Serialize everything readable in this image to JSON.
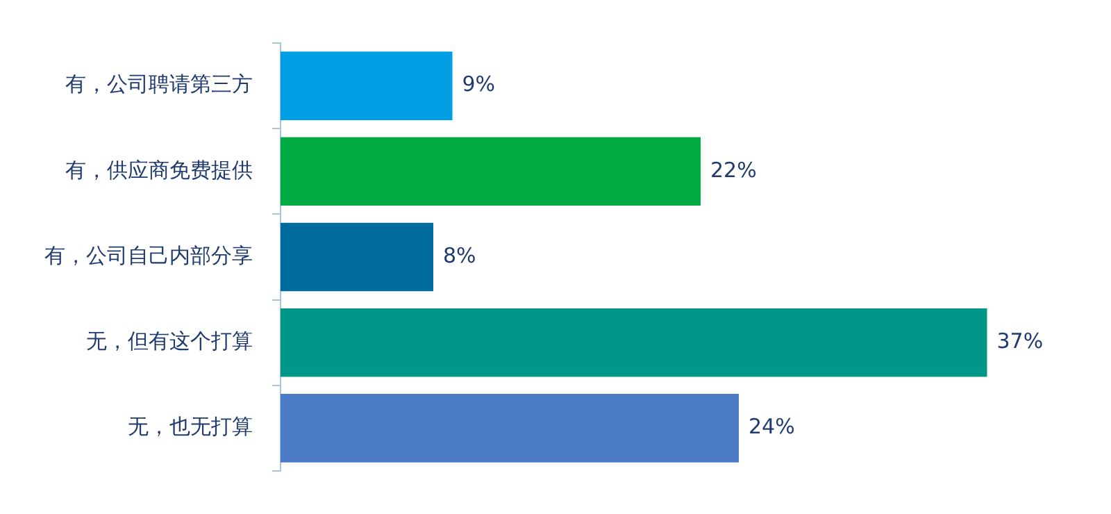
{
  "chart_data": {
    "type": "bar",
    "orientation": "horizontal",
    "categories": [
      "有，公司聘请第三方",
      "有，供应商免费提供",
      "有，公司自己内部分享",
      "无，但有这个打算",
      "无，也无打算"
    ],
    "values": [
      9,
      22,
      8,
      37,
      24
    ],
    "value_labels": [
      "9%",
      "22%",
      "8%",
      "37%",
      "24%"
    ],
    "colors": [
      "#009fe3",
      "#00ab44",
      "#006c9e",
      "#009688",
      "#4b7bc6"
    ],
    "grid": false,
    "legend": false
  }
}
